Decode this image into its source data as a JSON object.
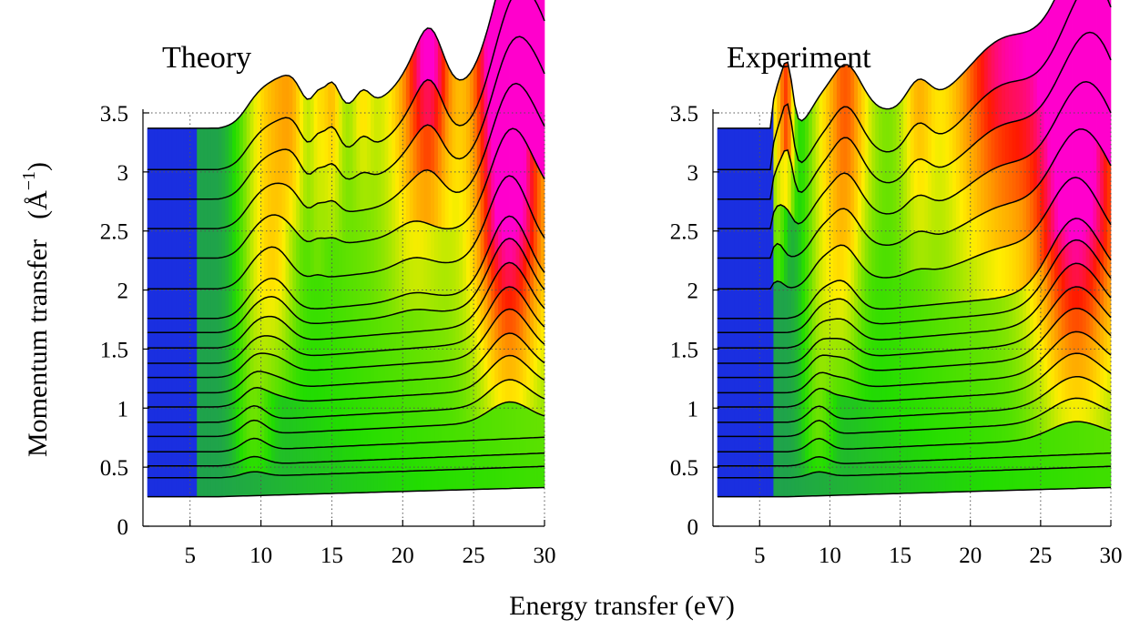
{
  "figure": {
    "xlabel": "Energy transfer (eV)",
    "ylabel": "Momentum transfer",
    "yunit": "(Å",
    "yunit_sup": "−1",
    "yunit_close": ")"
  },
  "colors": {
    "blue": "#1a2fe0",
    "green": "#22dd00",
    "yellow": "#ffee00",
    "orange": "#ff9900",
    "red": "#ff1a00",
    "magenta": "#ff00cc",
    "grid": "#555555",
    "line": "#000000"
  },
  "chart_data": [
    {
      "type": "area",
      "title": "Theory",
      "xlim": [
        2,
        30
      ],
      "ylim": [
        0,
        3.5
      ],
      "xticks": [
        "5",
        "10",
        "15",
        "20",
        "25",
        "30"
      ],
      "xtick_values": [
        5,
        10,
        15,
        20,
        25,
        30
      ],
      "yticks": [
        "0",
        "0.5",
        "1",
        "1.5",
        "2",
        "2.5",
        "3",
        "3.5"
      ],
      "ytick_values": [
        0,
        0.5,
        1,
        1.5,
        2,
        2.5,
        3,
        3.5
      ],
      "momentum_values": [
        0.25,
        0.41,
        0.51,
        0.63,
        0.76,
        0.88,
        1.01,
        1.13,
        1.26,
        1.38,
        1.51,
        1.64,
        1.76,
        2.01,
        2.27,
        2.52,
        2.77,
        3.02,
        3.37
      ],
      "peaks": [
        {
          "x": 9.5,
          "amp": 0.35,
          "w": 0.8,
          "onset": 0.35,
          "peak_q": 0.8
        },
        {
          "x": 11.0,
          "amp": 0.8,
          "w": 1.0,
          "onset": 1.0,
          "peak_q": 2.0
        },
        {
          "x": 12.3,
          "amp": 0.55,
          "w": 0.7,
          "onset": 2.2,
          "peak_q": 3.0
        },
        {
          "x": 14.0,
          "amp": 0.4,
          "w": 0.4,
          "onset": 2.0,
          "peak_q": 3.3
        },
        {
          "x": 15.0,
          "amp": 0.65,
          "w": 0.5,
          "onset": 2.2,
          "peak_q": 3.3
        },
        {
          "x": 17.2,
          "amp": 0.35,
          "w": 0.5,
          "onset": 2.6,
          "peak_q": 3.3
        },
        {
          "x": 20.8,
          "amp": 0.6,
          "w": 1.2,
          "onset": 1.6,
          "peak_q": 3.4
        },
        {
          "x": 22.0,
          "amp": 1.2,
          "w": 0.9,
          "onset": 2.3,
          "peak_q": 3.4
        },
        {
          "x": 27.5,
          "amp": 2.0,
          "w": 1.4,
          "onset": 0.7,
          "peak_q": 2.2
        },
        {
          "x": 29.5,
          "amp": 2.4,
          "w": 1.6,
          "onset": 2.2,
          "peak_q": 3.4
        }
      ]
    },
    {
      "type": "area",
      "title": "Experiment",
      "xlim": [
        2,
        30
      ],
      "ylim": [
        0,
        3.5
      ],
      "xticks": [
        "5",
        "10",
        "15",
        "20",
        "25",
        "30"
      ],
      "xtick_values": [
        5,
        10,
        15,
        20,
        25,
        30
      ],
      "yticks": [
        "0",
        "0.5",
        "1",
        "1.5",
        "2",
        "2.5",
        "3",
        "3.5"
      ],
      "ytick_values": [
        0,
        0.5,
        1,
        1.5,
        2,
        2.5,
        3,
        3.5
      ],
      "momentum_values": [
        0.25,
        0.41,
        0.51,
        0.63,
        0.76,
        0.88,
        1.01,
        1.13,
        1.26,
        1.38,
        1.51,
        1.64,
        1.76,
        2.01,
        2.27,
        2.52,
        2.77,
        3.02,
        3.37
      ],
      "peaks": [
        {
          "x": 6.3,
          "amp": 0.9,
          "w": 0.4,
          "onset": 2.0,
          "peak_q": 3.4
        },
        {
          "x": 7.0,
          "amp": 1.4,
          "w": 0.35,
          "onset": 2.5,
          "peak_q": 3.0
        },
        {
          "x": 9.2,
          "amp": 0.35,
          "w": 0.7,
          "onset": 0.35,
          "peak_q": 0.8
        },
        {
          "x": 10.8,
          "amp": 0.8,
          "w": 1.0,
          "onset": 1.0,
          "peak_q": 2.0
        },
        {
          "x": 11.6,
          "amp": 0.6,
          "w": 1.1,
          "onset": 2.0,
          "peak_q": 3.0
        },
        {
          "x": 16.3,
          "amp": 0.6,
          "w": 0.8,
          "onset": 2.0,
          "peak_q": 3.3
        },
        {
          "x": 22.5,
          "amp": 1.3,
          "w": 2.5,
          "onset": 1.8,
          "peak_q": 3.4
        },
        {
          "x": 27.5,
          "amp": 1.9,
          "w": 1.8,
          "onset": 0.6,
          "peak_q": 2.2
        },
        {
          "x": 29.5,
          "amp": 2.4,
          "w": 1.6,
          "onset": 2.2,
          "peak_q": 3.4
        }
      ]
    }
  ]
}
